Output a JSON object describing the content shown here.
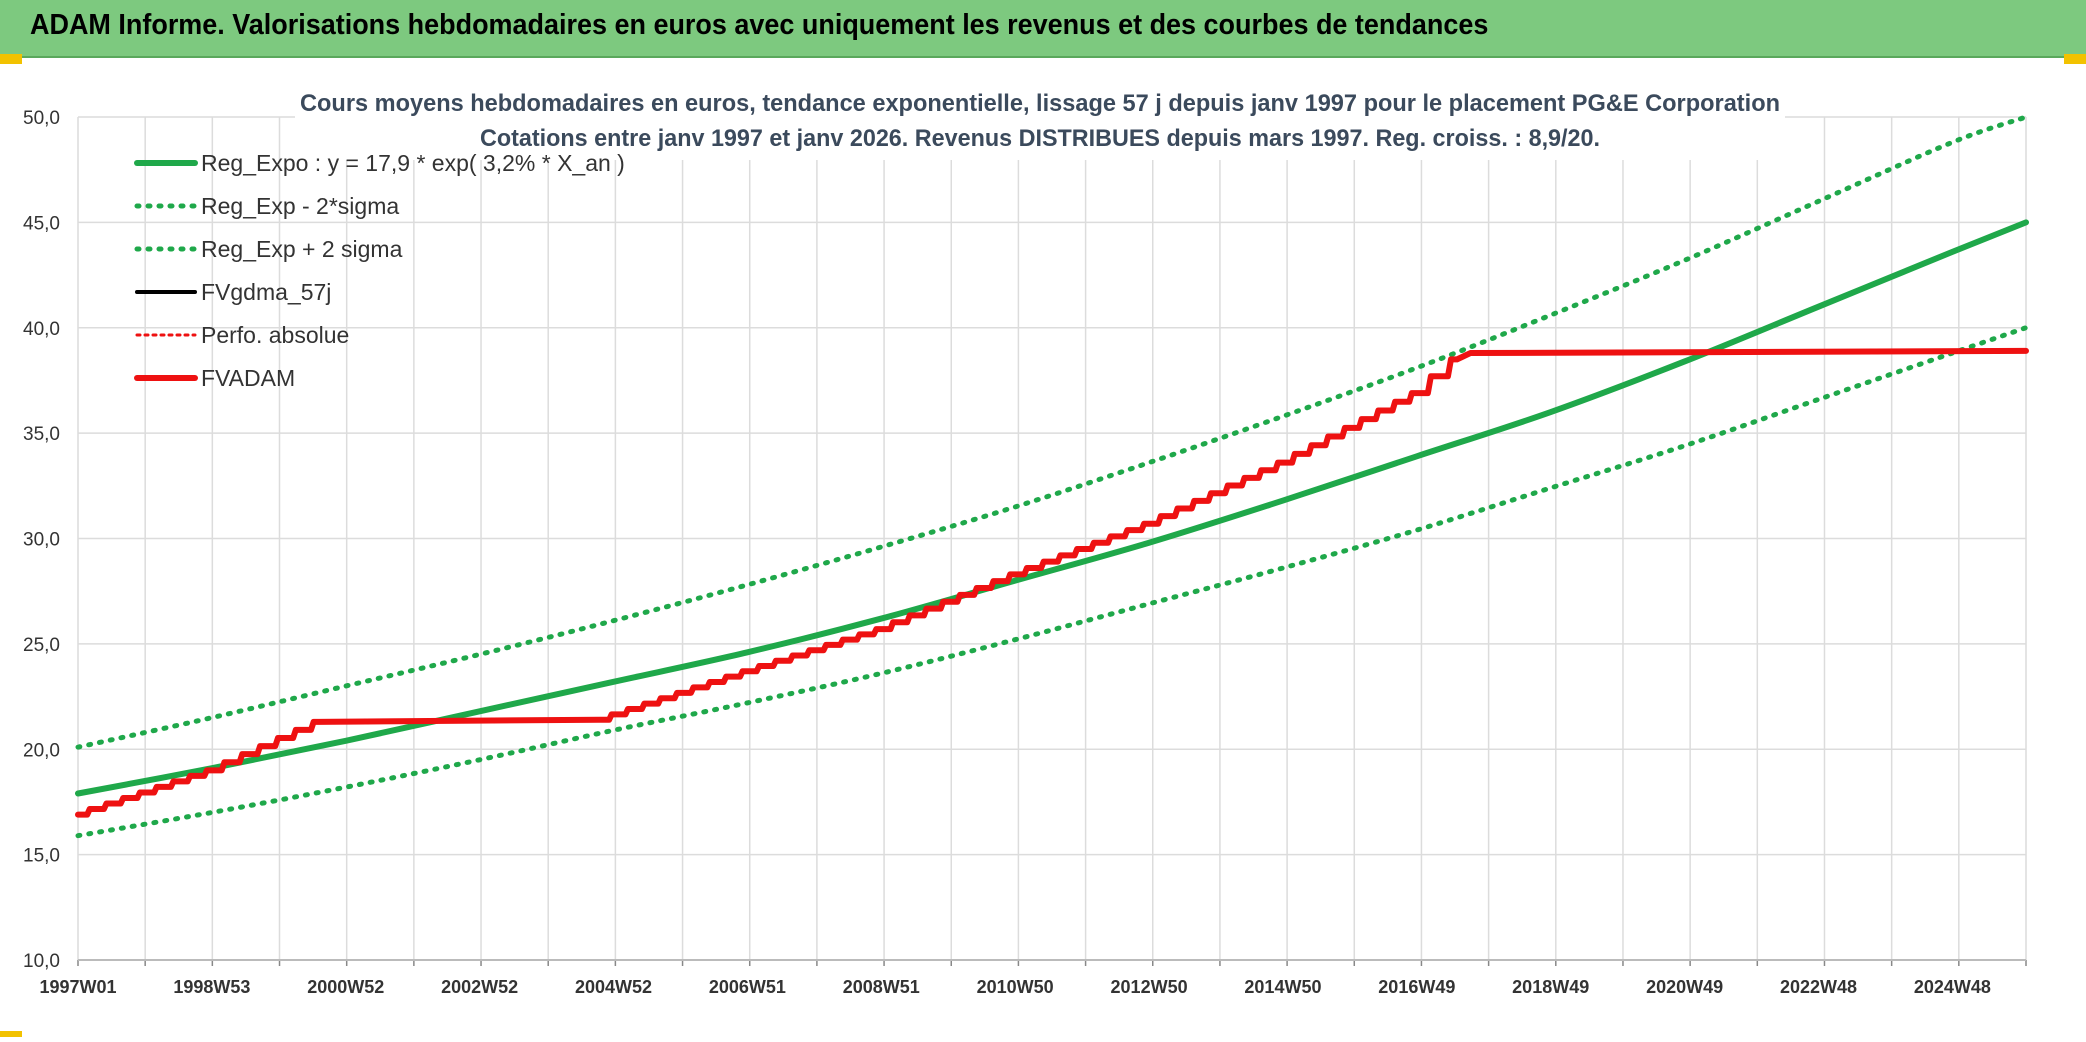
{
  "header": {
    "title": "ADAM Informe. Valorisations hebdomadaires en euros avec uniquement les revenus et des courbes de tendances"
  },
  "colors": {
    "banner": "#7dc97f",
    "trend": "#1fa84a",
    "fvadam": "#ee1111",
    "fvgdma": "#000000",
    "grid": "#dcdcdc"
  },
  "chart_data": {
    "type": "line",
    "title": "Cours moyens hebdomadaires en euros, tendance exponentielle, lissage 57 j depuis janv 1997 pour le placement PG&E Corporation",
    "subtitle": "Cotations entre janv 1997 et janv 2026. Revenus DISTRIBUES depuis mars 1997. Reg. croiss. : 8,9/20.",
    "xlabel": "",
    "ylabel": "",
    "ylim": [
      10,
      50
    ],
    "yticks": [
      "10,0",
      "15,0",
      "20,0",
      "25,0",
      "30,0",
      "35,0",
      "40,0",
      "45,0",
      "50,0"
    ],
    "xlim": [
      1997.0,
      2026.0
    ],
    "x_tick_labels": [
      {
        "label": "1997W01",
        "x": 1997.0
      },
      {
        "label": "1998W53",
        "x": 1999.0
      },
      {
        "label": "2000W52",
        "x": 2001.0
      },
      {
        "label": "2002W52",
        "x": 2003.0
      },
      {
        "label": "2004W52",
        "x": 2005.0
      },
      {
        "label": "2006W51",
        "x": 2007.0
      },
      {
        "label": "2008W51",
        "x": 2009.0
      },
      {
        "label": "2010W50",
        "x": 2011.0
      },
      {
        "label": "2012W50",
        "x": 2013.0
      },
      {
        "label": "2014W50",
        "x": 2015.0
      },
      {
        "label": "2016W49",
        "x": 2017.0
      },
      {
        "label": "2018W49",
        "x": 2019.0
      },
      {
        "label": "2020W49",
        "x": 2021.0
      },
      {
        "label": "2022W48",
        "x": 2023.0
      },
      {
        "label": "2024W48",
        "x": 2025.0
      }
    ],
    "grid": true,
    "legend_position": "top-left",
    "series": [
      {
        "name": "Reg_Expo : y = 17,9 * exp( 3,2% *  X_an )",
        "style": "solid",
        "color": "#1fa84a",
        "points": [
          [
            1997.0,
            17.9
          ],
          [
            1999.0,
            19.1
          ],
          [
            2001.0,
            20.4
          ],
          [
            2003.0,
            21.8
          ],
          [
            2005.0,
            23.2
          ],
          [
            2007.0,
            24.6
          ],
          [
            2009.0,
            26.2
          ],
          [
            2011.0,
            28.0
          ],
          [
            2013.0,
            29.8
          ],
          [
            2015.0,
            31.8
          ],
          [
            2017.0,
            33.9
          ],
          [
            2019.0,
            36.0
          ],
          [
            2021.0,
            38.4
          ],
          [
            2023.0,
            41.0
          ],
          [
            2025.0,
            43.6
          ],
          [
            2026.1,
            45.0
          ]
        ]
      },
      {
        "name": "Reg_Exp - 2*sigma",
        "style": "dotted",
        "color": "#1fa84a",
        "points": [
          [
            1997.0,
            15.9
          ],
          [
            1999.0,
            17.0
          ],
          [
            2001.0,
            18.2
          ],
          [
            2003.0,
            19.5
          ],
          [
            2005.0,
            20.9
          ],
          [
            2007.0,
            22.2
          ],
          [
            2009.0,
            23.6
          ],
          [
            2011.0,
            25.2
          ],
          [
            2013.0,
            26.9
          ],
          [
            2015.0,
            28.6
          ],
          [
            2017.0,
            30.4
          ],
          [
            2019.0,
            32.4
          ],
          [
            2021.0,
            34.4
          ],
          [
            2023.0,
            36.6
          ],
          [
            2025.0,
            38.8
          ],
          [
            2026.1,
            40.0
          ]
        ]
      },
      {
        "name": "Reg_Exp + 2 sigma",
        "style": "dotted",
        "color": "#1fa84a",
        "points": [
          [
            1997.0,
            20.1
          ],
          [
            1999.0,
            21.5
          ],
          [
            2001.0,
            23.0
          ],
          [
            2003.0,
            24.5
          ],
          [
            2005.0,
            26.1
          ],
          [
            2007.0,
            27.8
          ],
          [
            2009.0,
            29.6
          ],
          [
            2011.0,
            31.5
          ],
          [
            2013.0,
            33.6
          ],
          [
            2015.0,
            35.8
          ],
          [
            2017.0,
            38.1
          ],
          [
            2019.0,
            40.6
          ],
          [
            2021.0,
            43.2
          ],
          [
            2023.0,
            46.0
          ],
          [
            2025.0,
            48.8
          ],
          [
            2026.1,
            50.0
          ]
        ]
      },
      {
        "name": "FVgdma_57j",
        "style": "solid",
        "color": "#000000",
        "points": [
          [
            1997.0,
            16.9
          ],
          [
            1999.0,
            19.0
          ],
          [
            2000.6,
            21.3
          ],
          [
            2004.8,
            21.4
          ],
          [
            2007.0,
            23.7
          ],
          [
            2009.0,
            25.7
          ],
          [
            2011.0,
            28.3
          ],
          [
            2013.0,
            30.7
          ],
          [
            2015.0,
            33.6
          ],
          [
            2017.0,
            36.9
          ],
          [
            2017.6,
            38.5
          ],
          [
            2017.8,
            38.8
          ],
          [
            2026.1,
            38.9
          ]
        ]
      },
      {
        "name": "Perfo. absolue",
        "style": "dotted",
        "color": "#ee1111",
        "points": []
      },
      {
        "name": "FVADAM",
        "style": "solid-thick",
        "color": "#ee1111",
        "points": [
          [
            1997.0,
            16.9
          ],
          [
            1999.0,
            19.0
          ],
          [
            2000.6,
            21.3
          ],
          [
            2004.8,
            21.4
          ],
          [
            2007.0,
            23.7
          ],
          [
            2009.0,
            25.7
          ],
          [
            2011.0,
            28.3
          ],
          [
            2013.0,
            30.7
          ],
          [
            2015.0,
            33.6
          ],
          [
            2017.0,
            36.9
          ],
          [
            2017.6,
            38.5
          ],
          [
            2017.8,
            38.8
          ],
          [
            2026.1,
            38.9
          ]
        ]
      }
    ]
  }
}
